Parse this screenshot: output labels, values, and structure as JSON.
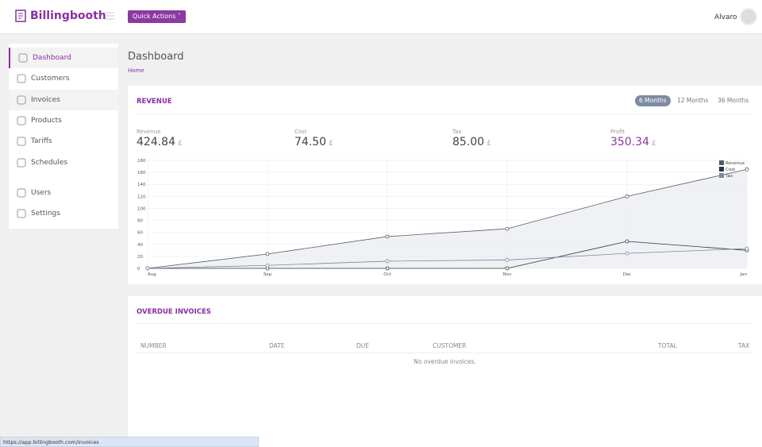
{
  "header": {
    "logo": "Billingbooth",
    "quick_actions": "Quick Actions",
    "user": "Alvaro"
  },
  "sidebar": {
    "groups": [
      [
        "Dashboard",
        "Customers",
        "Invoices",
        "Products",
        "Tariffs",
        "Schedules"
      ],
      [
        "Users",
        "Settings"
      ]
    ]
  },
  "page": {
    "title": "Dashboard",
    "breadcrumb": "Home"
  },
  "revenue": {
    "title": "REVENUE",
    "periods": [
      "6 Months",
      "12 Months",
      "36 Months"
    ],
    "stats": [
      {
        "label": "Revenue",
        "value": "424.84",
        "unit": "£"
      },
      {
        "label": "Cost",
        "value": "74.50",
        "unit": "£"
      },
      {
        "label": "Tax",
        "value": "85.00",
        "unit": "£"
      },
      {
        "label": "Profit",
        "value": "350.34",
        "unit": "£"
      }
    ]
  },
  "chart_data": {
    "type": "line",
    "categories": [
      "Aug",
      "Sep",
      "Oct",
      "Nov",
      "Dec",
      "Jan"
    ],
    "series": [
      {
        "name": "Revenue",
        "color": "#555b66",
        "values": [
          0,
          24,
          53,
          66,
          120,
          165
        ]
      },
      {
        "name": "Cost",
        "color": "#2f3640",
        "values": [
          0,
          0,
          0,
          0,
          45,
          30
        ]
      },
      {
        "name": "Tax",
        "color": "#7a87a8",
        "values": [
          0,
          5,
          12,
          14,
          25,
          33
        ]
      }
    ],
    "ylim": [
      0,
      180
    ],
    "yticks": [
      0,
      20,
      40,
      60,
      80,
      100,
      120,
      140,
      160,
      180
    ],
    "grid": true,
    "legend": "top-right"
  },
  "overdue": {
    "title": "OVERDUE INVOICES",
    "columns": [
      "NUMBER",
      "DATE",
      "DUE",
      "CUSTOMER",
      "TOTAL",
      "TAX"
    ],
    "empty": "No overdue invoices."
  },
  "status_bar": "https://app.billingbooth.com/invoices"
}
